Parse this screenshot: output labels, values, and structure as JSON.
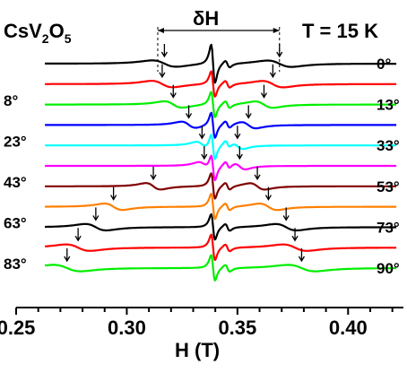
{
  "chart_data": {
    "type": "line",
    "title": "CsV2O5",
    "title_main": "CsV",
    "title_sub1": "2",
    "title_mid": "O",
    "title_sub2": "5",
    "temperature_label": "T = 15 K",
    "delta_label": "δH",
    "xlabel": "H (T)",
    "ylabel": "",
    "xlim": [
      0.25,
      0.425
    ],
    "x_ticks": [
      0.25,
      0.3,
      0.35,
      0.4
    ],
    "x_tick_labels": [
      "0.25",
      "0.30",
      "0.35",
      "0.40"
    ],
    "delta_H_markers": [
      0.314,
      0.369
    ],
    "grid": false,
    "series": [
      {
        "name": "0°",
        "label_side": "right",
        "color": "#000000",
        "peaks": [
          0.317,
          0.369
        ]
      },
      {
        "name": "8°",
        "label_side": "left",
        "color": "#ff0000",
        "peaks": [
          0.316,
          0.366
        ]
      },
      {
        "name": "13°",
        "label_side": "right",
        "color": "#00ee00",
        "peaks": [
          0.321,
          0.362
        ]
      },
      {
        "name": "23°",
        "label_side": "left",
        "color": "#0000ff",
        "peaks": [
          0.328,
          0.355
        ]
      },
      {
        "name": "33°",
        "label_side": "right",
        "color": "#00ffff",
        "peaks": [
          0.334,
          0.35
        ]
      },
      {
        "name": "43°",
        "label_side": "left",
        "color": "#ff00ff",
        "peaks": [
          0.335,
          0.351
        ]
      },
      {
        "name": "53°",
        "label_side": "right",
        "color": "#800000",
        "peaks": [
          0.312,
          0.359
        ]
      },
      {
        "name": "63°",
        "label_side": "left",
        "color": "#ff8000",
        "peaks": [
          0.294,
          0.364
        ]
      },
      {
        "name": "73°",
        "label_side": "right",
        "color": "#000000",
        "peaks": [
          0.286,
          0.372
        ]
      },
      {
        "name": "83°",
        "label_side": "left",
        "color": "#ff0000",
        "peaks": [
          0.278,
          0.376
        ]
      },
      {
        "name": "90°",
        "label_side": "right",
        "color": "#00ee00",
        "peaks": [
          0.273,
          0.379
        ]
      }
    ]
  }
}
